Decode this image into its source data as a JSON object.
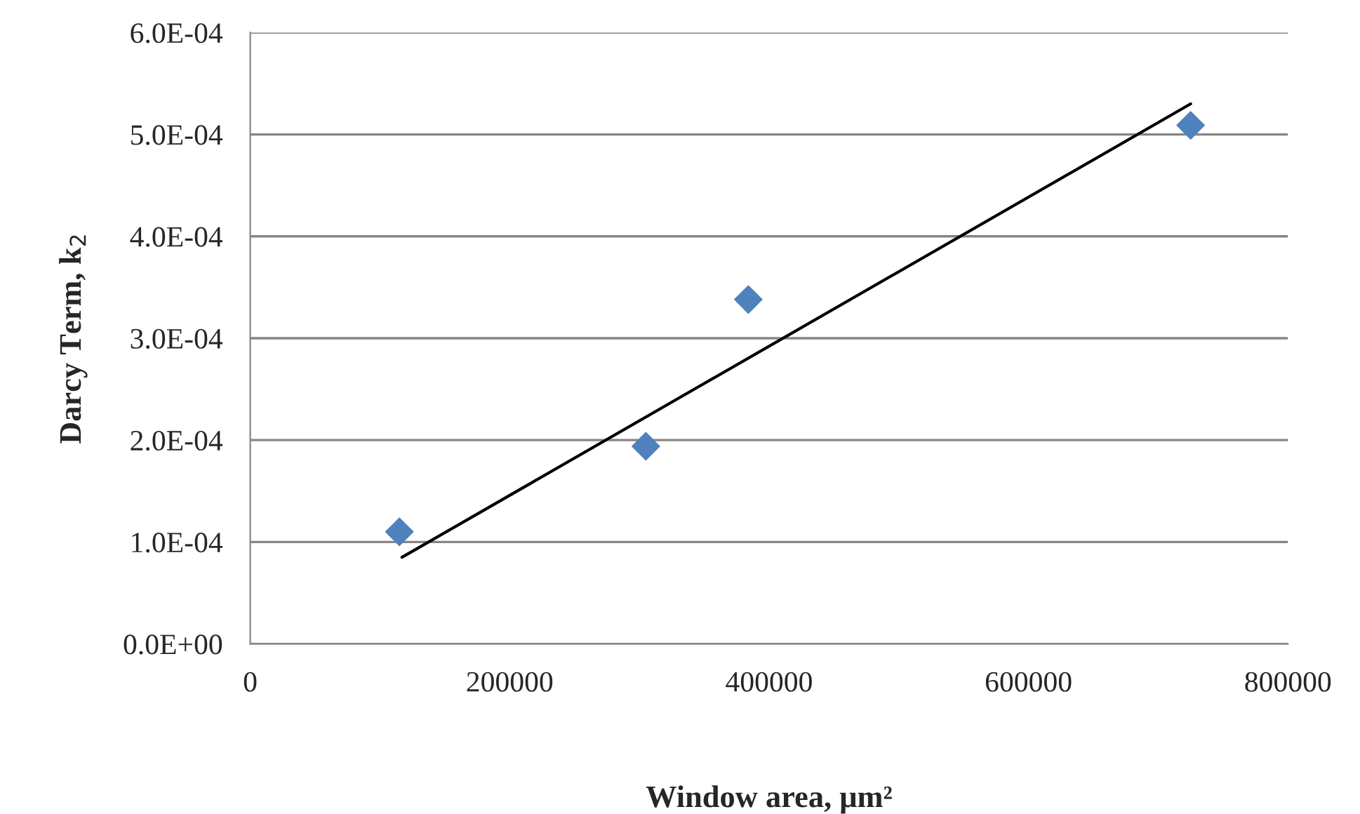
{
  "chart_data": {
    "type": "scatter",
    "xlabel": "Window area, μm²",
    "ylabel": "Darcy Term, k$_{2}$",
    "series": [
      {
        "color": "#4f81bd",
        "marker": "diamond",
        "x": [
          115000,
          305000,
          384000,
          725000
        ],
        "values": [
          0.00011,
          0.000194,
          0.000338,
          0.000509
        ]
      },
      {
        "type": "line",
        "color": "#000000",
        "marker": "none",
        "line_style": "solid",
        "x": [
          117000,
          725000
        ],
        "values": [
          8.5e-05,
          0.00053
        ]
      }
    ],
    "xlim": [
      0,
      800000
    ],
    "xticks": [
      0,
      200000,
      400000,
      600000,
      800000
    ],
    "ylim": [
      0,
      0.0006
    ],
    "yticks": [
      {
        "value": 0,
        "label": "0.0E+00"
      },
      {
        "value": 0.0001,
        "label": "1.0E-04"
      },
      {
        "value": 0.0002,
        "label": "2.0E-04"
      },
      {
        "value": 0.0003,
        "label": "3.0E-04"
      },
      {
        "value": 0.0004,
        "label": "4.0E-04"
      },
      {
        "value": 0.0005,
        "label": "5.0E-04"
      },
      {
        "value": 0.0006,
        "label": "6.0E-04"
      }
    ],
    "grid": "y",
    "legend": false
  }
}
